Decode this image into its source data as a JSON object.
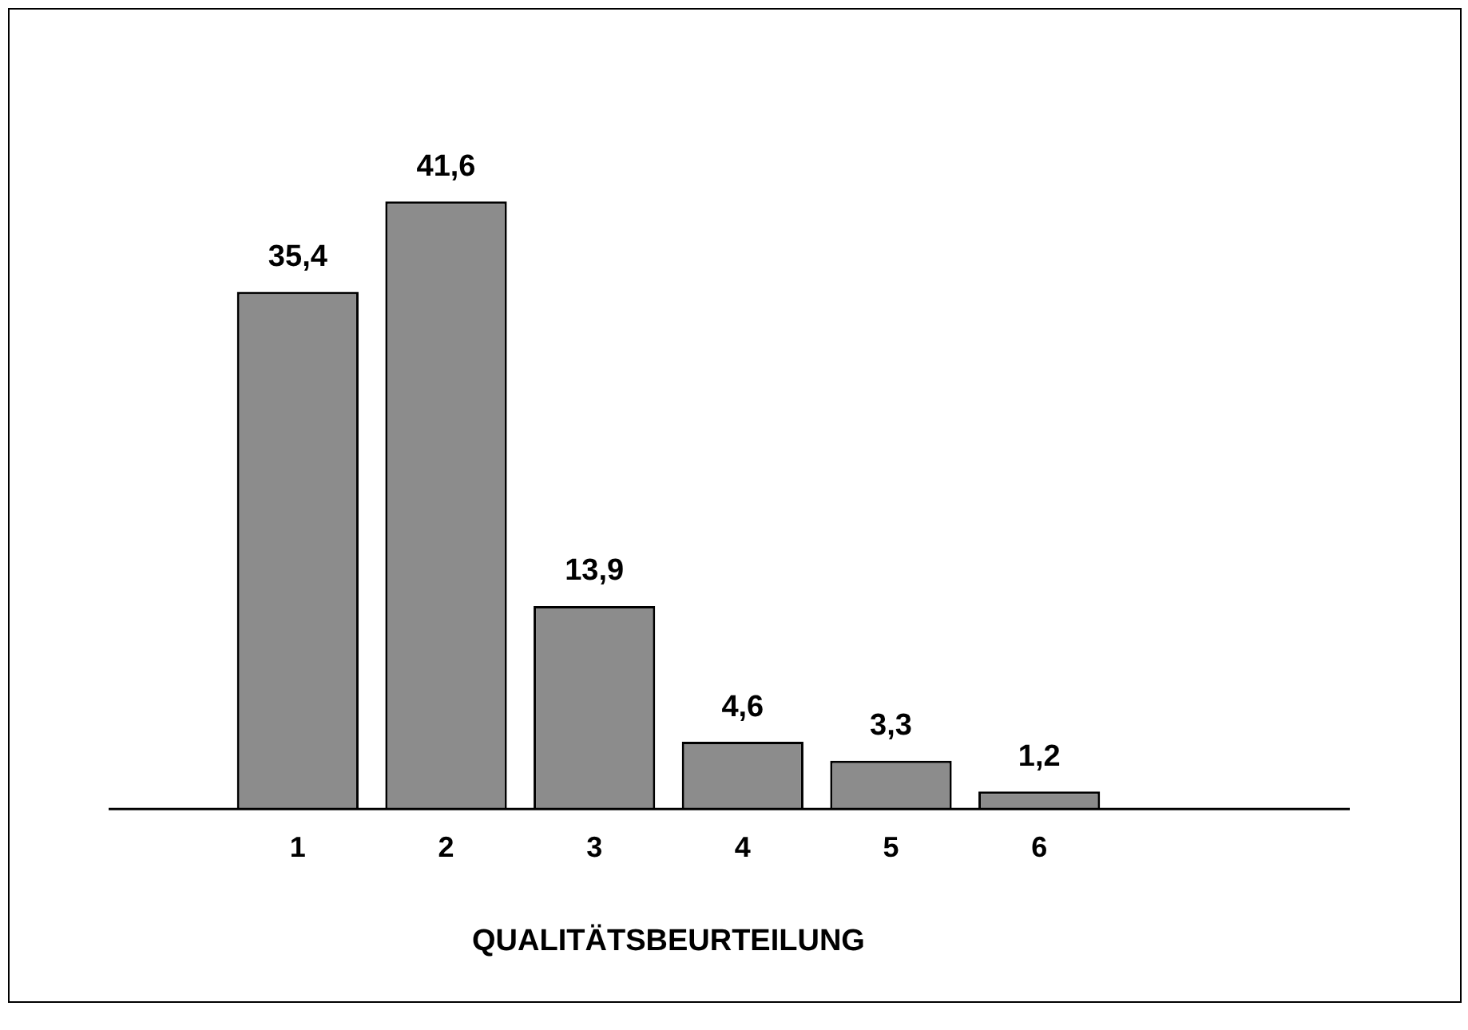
{
  "chart_data": {
    "type": "bar",
    "xlabel": "QUALITÄTSBEURTEILUNG",
    "categories": [
      "1",
      "2",
      "3",
      "4",
      "5",
      "6"
    ],
    "values": [
      35.4,
      41.6,
      13.9,
      4.6,
      3.3,
      1.2
    ],
    "value_labels": [
      "35,4",
      "41,6",
      "13,9",
      "4,6",
      "3,3",
      "1,2"
    ],
    "color": "#8c8c8c",
    "grid": false,
    "legend": false
  }
}
